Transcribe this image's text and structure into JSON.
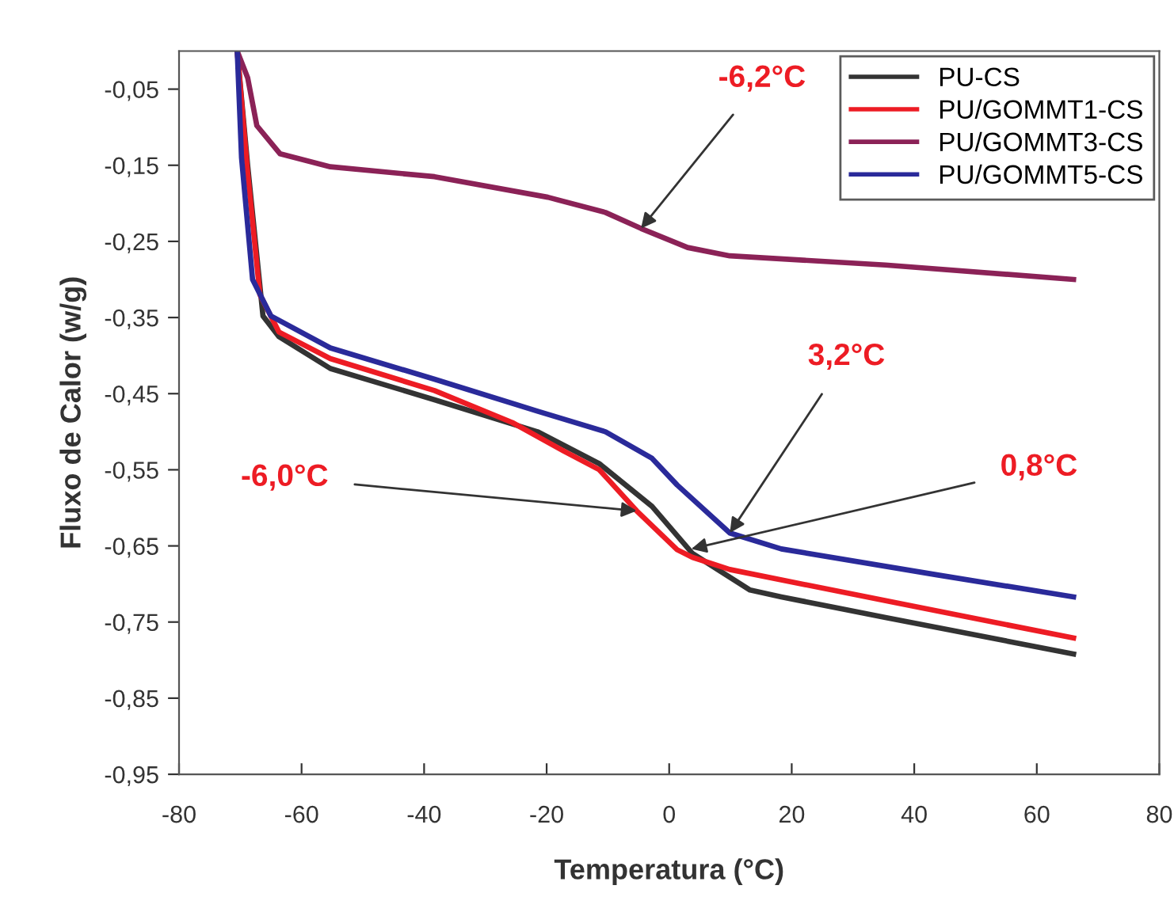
{
  "chart_data": {
    "type": "line",
    "xlabel": "Temperatura (°C)",
    "ylabel": "Fluxo de Calor (w/g)",
    "xlim": [
      -80,
      80
    ],
    "xticks": [
      -80,
      -60,
      -40,
      -20,
      0,
      20,
      40,
      60,
      80
    ],
    "ylim": [
      -0.95,
      0.0
    ],
    "yticks": [
      {
        "value": -0.95,
        "label": "-0,95"
      },
      {
        "value": -0.85,
        "label": "-0,85"
      },
      {
        "value": -0.75,
        "label": "-0,75"
      },
      {
        "value": -0.65,
        "label": "-0,65"
      },
      {
        "value": -0.55,
        "label": "-0,55"
      },
      {
        "value": -0.45,
        "label": "-0,45"
      },
      {
        "value": -0.35,
        "label": "-0,35"
      },
      {
        "value": -0.25,
        "label": "-0,25"
      },
      {
        "value": -0.15,
        "label": "-0,15"
      },
      {
        "value": -0.05,
        "label": "-0,05"
      }
    ],
    "grid": false,
    "legend": "top right",
    "marker": "none",
    "line_style": "solid",
    "series": [
      {
        "name": "PU-CS",
        "color": "#333333",
        "x": [
          -70.5,
          -68.8,
          -66.3,
          -63.7,
          -55.3,
          -38.3,
          -21.5,
          -11.4,
          -2.8,
          3.8,
          13.2,
          18.3,
          35.3,
          66
        ],
        "values": [
          0.0,
          -0.15,
          -0.348,
          -0.375,
          -0.417,
          -0.458,
          -0.5,
          -0.542,
          -0.598,
          -0.66,
          -0.708,
          -0.717,
          -0.744,
          -0.792
        ]
      },
      {
        "name": "PU/GOMMT1-CS",
        "color": "#ed1c24",
        "x": [
          -70.5,
          -68.8,
          -66.8,
          -63.7,
          -55.3,
          -38.3,
          -25.6,
          -17.3,
          -11.4,
          -5.3,
          1.3,
          3.8,
          9.9,
          26.6,
          66
        ],
        "values": [
          0.0,
          -0.16,
          -0.32,
          -0.369,
          -0.404,
          -0.446,
          -0.488,
          -0.525,
          -0.55,
          -0.604,
          -0.655,
          -0.665,
          -0.681,
          -0.708,
          -0.771
        ]
      },
      {
        "name": "PU/GOMMT3-CS",
        "color": "#8b2257",
        "x": [
          -70.5,
          -68.8,
          -67.3,
          -63.5,
          -55.3,
          -38.3,
          -19.8,
          -10.4,
          -4.6,
          3,
          9.9,
          35.3,
          66
        ],
        "values": [
          0.0,
          -0.035,
          -0.098,
          -0.135,
          -0.152,
          -0.165,
          -0.192,
          -0.212,
          -0.233,
          -0.258,
          -0.269,
          -0.281,
          -0.3
        ]
      },
      {
        "name": "PU/GOMMT5-CS",
        "color": "#2a2a9a",
        "x": [
          -70.5,
          -69.8,
          -68,
          -65,
          -55.3,
          -38.3,
          -21.5,
          -10.4,
          -2.8,
          1.3,
          9.9,
          18.3,
          43.7,
          66
        ],
        "values": [
          0.0,
          -0.14,
          -0.3,
          -0.348,
          -0.39,
          -0.431,
          -0.473,
          -0.5,
          -0.535,
          -0.57,
          -0.633,
          -0.654,
          -0.688,
          -0.717
        ]
      }
    ],
    "annotations": [
      {
        "text": "-6,2°C",
        "x": -4.6,
        "y": -0.233
      },
      {
        "text": "-6,0°C",
        "x": -5.3,
        "y": -0.604
      },
      {
        "text": "3,2°C",
        "x": 9.9,
        "y": -0.633
      },
      {
        "text": "0,8°C",
        "x": 3.6,
        "y": -0.654
      }
    ]
  }
}
